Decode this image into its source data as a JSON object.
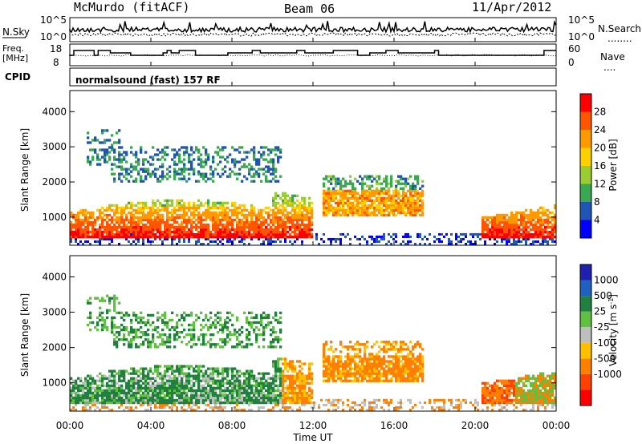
{
  "header": {
    "station": "McMurdo (fitACF)",
    "beam": "Beam 06",
    "date": "11/Apr/2012"
  },
  "sky_panel": {
    "left_label": "N.Sky",
    "right_label": "N.Search",
    "right_label_line": "........",
    "left_ticks": [
      "10^5",
      "10^0"
    ],
    "right_ticks": [
      "10^5",
      "10^0"
    ]
  },
  "freq_panel": {
    "left_label_line1": "Freq.",
    "left_label_line2": "[MHz]",
    "left_ticks": [
      "18",
      "8"
    ],
    "right_label": "Nave",
    "right_label_line": "....",
    "right_ticks": [
      "60",
      "0"
    ]
  },
  "cpid_panel": {
    "label": "CPID",
    "text": "normalsound (fast) 157 RF"
  },
  "colors": {
    "power_scale": [
      "#0000ff",
      "#1f55b4",
      "#3aa850",
      "#9acd32",
      "#ffd000",
      "#ff9900",
      "#ff5500",
      "#ff0000"
    ],
    "velocity_scale": [
      "#2020b0",
      "#2060c0",
      "#208040",
      "#60c040",
      "#bebebe",
      "#ffc000",
      "#ff8000",
      "#ff4000",
      "#ff0000"
    ]
  },
  "chart_data": [
    {
      "type": "heatmap",
      "panel": "power",
      "ylabel": "Slant Range [km]",
      "yticks": [
        "1000",
        "2000",
        "3000",
        "4000"
      ],
      "ylim": [
        200,
        4600
      ],
      "xlim": [
        0,
        24
      ],
      "colorbar_label": "Power [dB]",
      "colorbar_ticks": [
        "4",
        "8",
        "12",
        "16",
        "20",
        "24",
        "28"
      ],
      "colorbar_range": [
        0,
        32
      ]
    },
    {
      "type": "heatmap",
      "panel": "velocity",
      "ylabel": "Slant Range [km]",
      "yticks": [
        "1000",
        "2000",
        "3000",
        "4000"
      ],
      "ylim": [
        200,
        4600
      ],
      "xlim": [
        0,
        24
      ],
      "colorbar_label": "Velocity [m s-1]",
      "colorbar_label_main": "Velocity [m s",
      "colorbar_label_sup": "-1",
      "colorbar_label_end": "]",
      "colorbar_ticks": [
        "1000",
        "500",
        "25",
        "-25",
        "-100",
        "-500",
        "-1000"
      ]
    }
  ],
  "x_axis": {
    "ticks": [
      "00:00",
      "04:00",
      "08:00",
      "12:00",
      "16:00",
      "20:00",
      "00:00"
    ],
    "label": "Time UT"
  }
}
